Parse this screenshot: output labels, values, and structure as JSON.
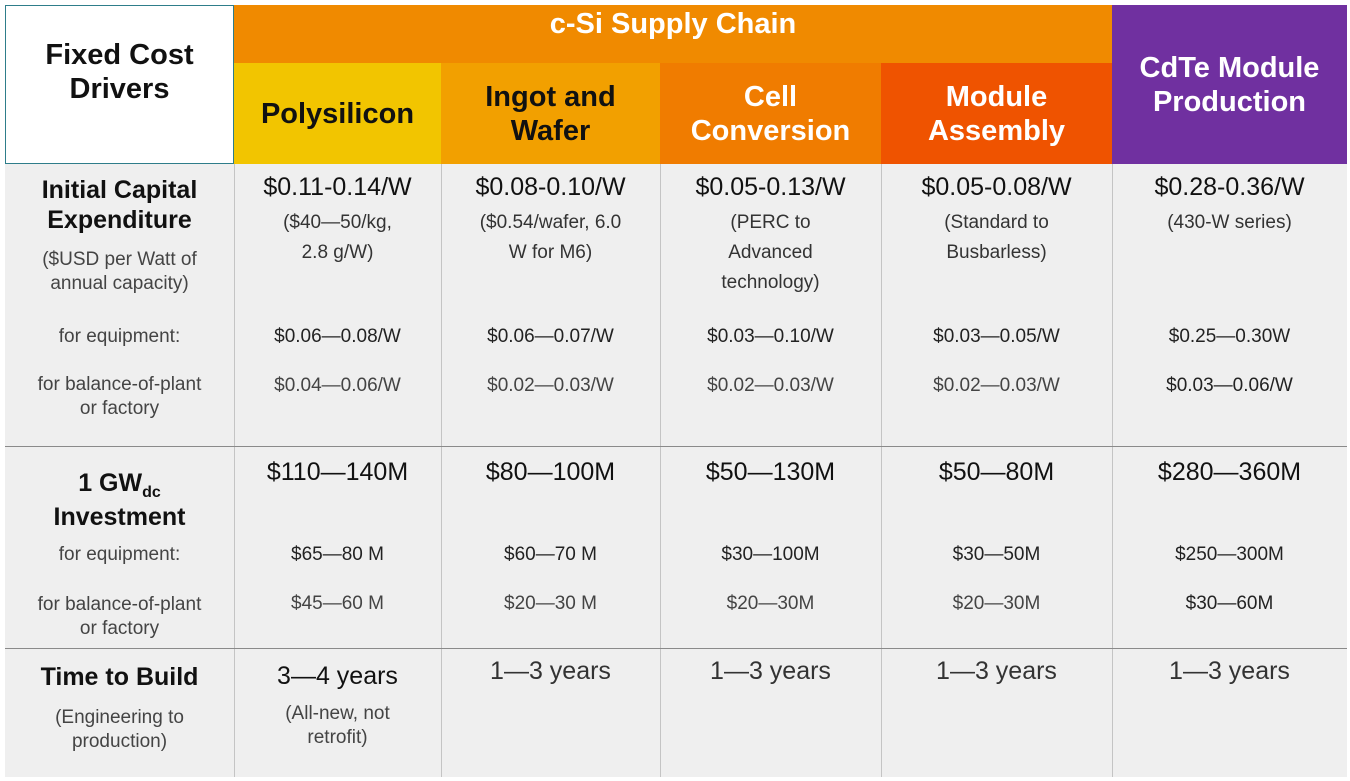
{
  "header": {
    "drivers": "Fixed Cost\nDrivers",
    "csi_supply_chain": "c-Si Supply Chain",
    "polysilicon": "Polysilicon",
    "ingot_wafer": "Ingot and\nWafer",
    "cell_conversion": "Cell\nConversion",
    "module_assembly": "Module\nAssembly",
    "cdte": "CdTe Module\nProduction"
  },
  "capex": {
    "label": "Initial Capital\nExpenditure",
    "label_sub": "($USD per Watt of\nannual capacity)",
    "for_equipment": "for equipment:",
    "for_bop": "for balance-of-plant\nor factory",
    "columns": [
      {
        "total": "$0.11-0.14/W",
        "note": "($40—50/kg,\n2.8 g/W)",
        "equipment": "$0.06—0.08/W",
        "bop": "$0.04—0.06/W"
      },
      {
        "total": "$0.08-0.10/W",
        "note": "($0.54/wafer, 6.0\nW for M6)",
        "equipment": "$0.06—0.07/W",
        "bop": "$0.02—0.03/W"
      },
      {
        "total": "$0.05-0.13/W",
        "note": "(PERC to\nAdvanced\ntechnology)",
        "equipment": "$0.03—0.10/W",
        "bop": "$0.02—0.03/W"
      },
      {
        "total": "$0.05-0.08/W",
        "note": "(Standard to\nBusbarless)",
        "equipment": "$0.03—0.05/W",
        "bop": "$0.02—0.03/W"
      },
      {
        "total": "$0.28-0.36/W",
        "note": "(430-W series)",
        "equipment": "$0.25—0.30W",
        "bop": "$0.03—0.06/W"
      }
    ]
  },
  "investment": {
    "label_gw": "1 GW",
    "label_dc": "dc",
    "label_investment": "Investment",
    "for_equipment": "for equipment:",
    "for_bop": "for balance-of-plant\nor factory",
    "columns": [
      {
        "total": "$110—140M",
        "equipment": "$65—80 M",
        "bop": "$45—60 M"
      },
      {
        "total": "$80—100M",
        "equipment": "$60—70 M",
        "bop": "$20—30 M"
      },
      {
        "total": "$50—130M",
        "equipment": "$30—100M",
        "bop": "$20—30M"
      },
      {
        "total": "$50—80M",
        "equipment": "$30—50M",
        "bop": "$20—30M"
      },
      {
        "total": "$280—360M",
        "equipment": "$250—300M",
        "bop": "$30—60M"
      }
    ]
  },
  "build": {
    "label": "Time to Build",
    "label_sub": "(Engineering to\nproduction)",
    "columns": [
      {
        "total": "3—4 years",
        "note": "(All-new, not\nretrofit)"
      },
      {
        "total": "1—3 years",
        "note": ""
      },
      {
        "total": "1—3 years",
        "note": ""
      },
      {
        "total": "1—3 years",
        "note": ""
      },
      {
        "total": "1—3 years",
        "note": ""
      }
    ]
  },
  "colors": {
    "csi_header": "#f08a00",
    "polysilicon": "#f2c500",
    "ingot_wafer": "#f2a000",
    "cell_conversion": "#f07c00",
    "module_assembly": "#ef5300",
    "cdte": "#7030a0",
    "body": "#efefef"
  }
}
